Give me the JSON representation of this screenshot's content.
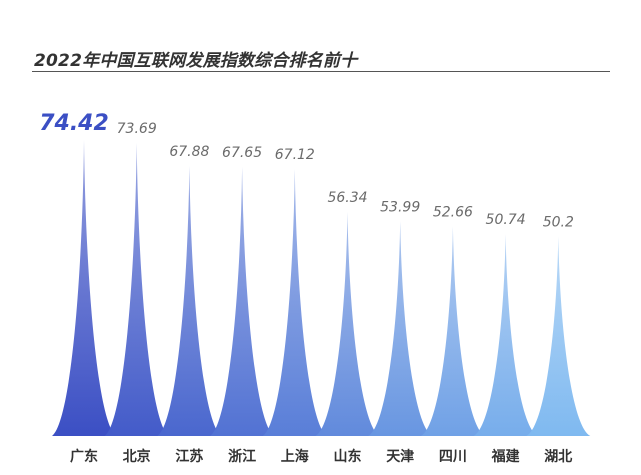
{
  "chart_data": {
    "type": "bar",
    "title": "2022年中国互联网发展指数综合排名前十",
    "categories": [
      "广东",
      "北京",
      "江苏",
      "浙江",
      "上海",
      "山东",
      "天津",
      "四川",
      "福建",
      "湖北"
    ],
    "values": [
      74.42,
      73.69,
      67.88,
      67.65,
      67.12,
      56.34,
      53.99,
      52.66,
      50.74,
      50.2
    ],
    "value_labels": [
      "74.42",
      "73.69",
      "67.88",
      "67.65",
      "67.12",
      "56.34",
      "53.99",
      "52.66",
      "50.74",
      "50.2"
    ],
    "xlabel": "",
    "ylabel": "",
    "ylim": [
      0,
      80
    ],
    "grid": false,
    "legend": "none",
    "bar_shape": "spike",
    "colors": {
      "gradient_start": "#3b4fc4",
      "gradient_end": "#7fb9f0",
      "highlight_label": "#3b4fc4",
      "label": "#6b6b6b"
    }
  }
}
